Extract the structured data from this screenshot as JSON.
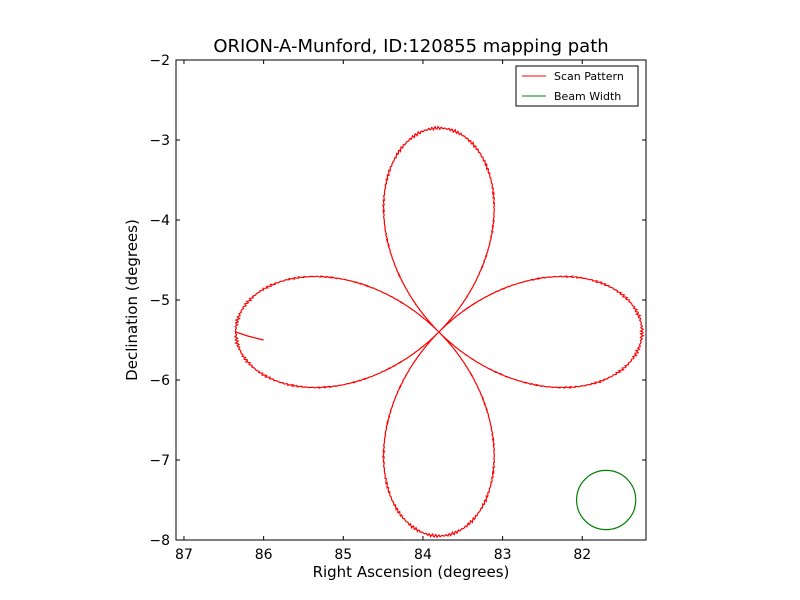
{
  "chart_data": {
    "type": "line",
    "title": "ORION-A-Munford, ID:120855 mapping path",
    "xlabel": "Right Ascension (degrees)",
    "ylabel": "Declination (degrees)",
    "xlim": [
      87.1,
      81.2
    ],
    "ylim": [
      -8,
      -2
    ],
    "x_inverted": true,
    "xticks": [
      87,
      86,
      85,
      84,
      83,
      82
    ],
    "xtick_labels": [
      "87",
      "86",
      "85",
      "84",
      "83",
      "82"
    ],
    "yticks": [
      -2,
      -3,
      -4,
      -5,
      -6,
      -7,
      -8
    ],
    "ytick_labels": [
      "−2",
      "−3",
      "−4",
      "−5",
      "−6",
      "−7",
      "−8"
    ],
    "grid": false,
    "legend": {
      "placement": "top-right"
    },
    "colors": {
      "scan": "#ff0000",
      "beam": "#007f00"
    },
    "series": [
      {
        "name": "Scan Pattern",
        "kind": "line",
        "center": [
          83.8,
          -5.4
        ],
        "petal_radius": 2.55,
        "start": [
          86.0,
          -5.5
        ],
        "entry": [
          86.2,
          -5.45
        ]
      },
      {
        "name": "Beam Width",
        "kind": "circle",
        "center": [
          81.7,
          -7.5
        ],
        "radius_deg": 0.37
      }
    ]
  }
}
